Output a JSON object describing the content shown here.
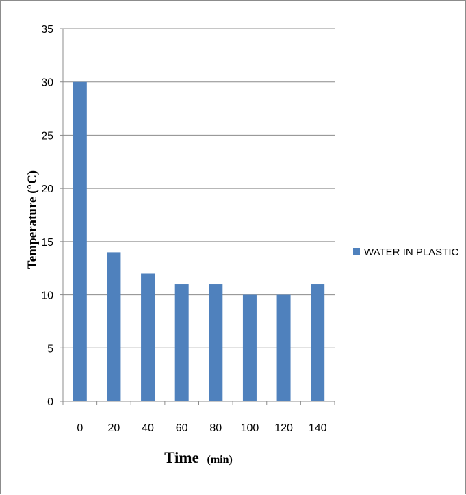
{
  "chart_data": {
    "type": "bar",
    "title": "",
    "xlabel": "Time",
    "xlabel_unit": "(min)",
    "ylabel": "Temperature (°C)",
    "categories": [
      "0",
      "20",
      "40",
      "60",
      "80",
      "100",
      "120",
      "140"
    ],
    "series": [
      {
        "name": "WATER IN PLASTIC",
        "values": [
          30,
          14,
          12,
          11,
          11,
          10,
          10,
          11
        ]
      }
    ],
    "yticks": [
      "0",
      "5",
      "10",
      "15",
      "20",
      "25",
      "30",
      "35"
    ],
    "ylim": [
      0,
      35
    ],
    "grid": true,
    "legend_position": "right",
    "bar_color": "#4f81bd",
    "grid_color": "#8c8c8c"
  }
}
